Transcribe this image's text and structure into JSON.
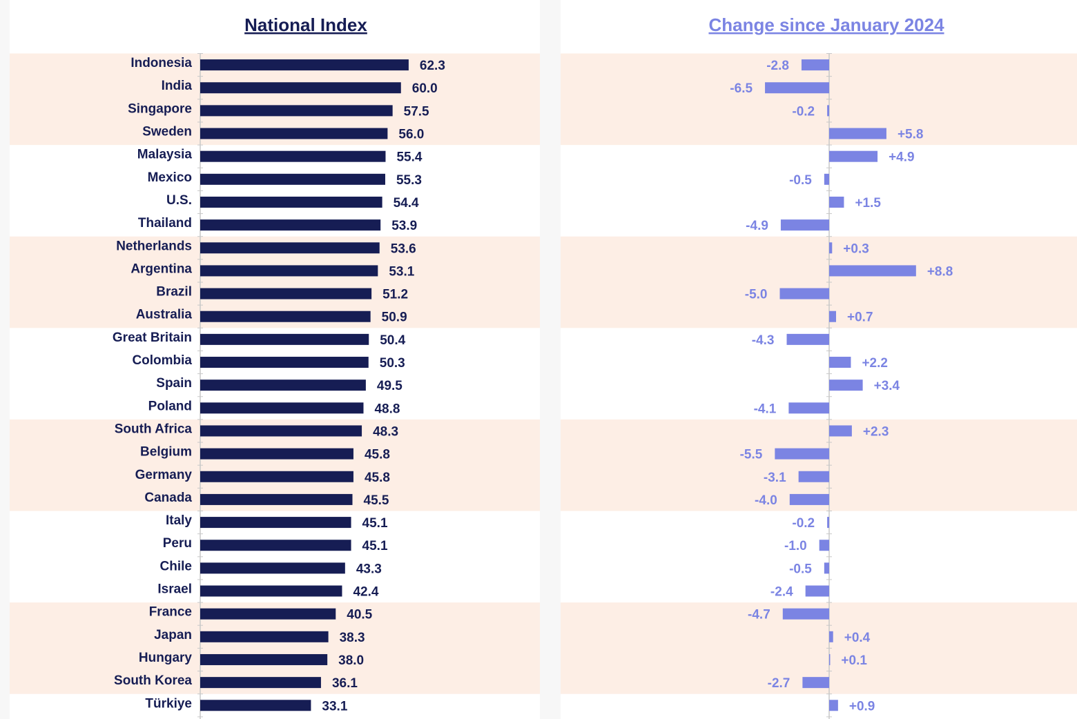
{
  "chart_data": [
    {
      "type": "bar",
      "orientation": "horizontal",
      "title": "National Index",
      "categories": [
        "Indonesia",
        "India",
        "Singapore",
        "Sweden",
        "Malaysia",
        "Mexico",
        "U.S.",
        "Thailand",
        "Netherlands",
        "Argentina",
        "Brazil",
        "Australia",
        "Great Britain",
        "Colombia",
        "Spain",
        "Poland",
        "South Africa",
        "Belgium",
        "Germany",
        "Canada",
        "Italy",
        "Peru",
        "Chile",
        "Israel",
        "France",
        "Japan",
        "Hungary",
        "South Korea",
        "Türkiye"
      ],
      "values": [
        62.3,
        60.0,
        57.5,
        56.0,
        55.4,
        55.3,
        54.4,
        53.9,
        53.6,
        53.1,
        51.2,
        50.9,
        50.4,
        50.3,
        49.5,
        48.8,
        48.3,
        45.8,
        45.8,
        45.5,
        45.1,
        45.1,
        43.3,
        42.4,
        40.5,
        38.3,
        38.0,
        36.1,
        33.1
      ],
      "value_labels": [
        "62.3",
        "60.0",
        "57.5",
        "56.0",
        "55.4",
        "55.3",
        "54.4",
        "53.9",
        "53.6",
        "53.1",
        "51.2",
        "50.9",
        "50.4",
        "50.3",
        "49.5",
        "48.8",
        "48.3",
        "45.8",
        "45.8",
        "45.5",
        "45.1",
        "45.1",
        "43.3",
        "42.4",
        "40.5",
        "38.3",
        "38.0",
        "36.1",
        "33.1"
      ],
      "color": "#161d54",
      "xlim": [
        0,
        65
      ]
    },
    {
      "type": "bar",
      "orientation": "horizontal",
      "title": "Change since January 2024",
      "values": [
        -2.8,
        -6.5,
        -0.2,
        5.8,
        4.9,
        -0.5,
        1.5,
        -4.9,
        0.3,
        8.8,
        -5.0,
        0.7,
        -4.3,
        2.2,
        3.4,
        -4.1,
        2.3,
        -5.5,
        -3.1,
        -4.0,
        -0.2,
        -1.0,
        -0.5,
        -2.4,
        -4.7,
        0.4,
        0.1,
        -2.7,
        0.9
      ],
      "value_labels": [
        "-2.8",
        "-6.5",
        "-0.2",
        "+5.8",
        "+4.9",
        "-0.5",
        "+1.5",
        "-4.9",
        "+0.3",
        "+8.8",
        "-5.0",
        "+0.7",
        "-4.3",
        "+2.2",
        "+3.4",
        "-4.1",
        "+2.3",
        "-5.5",
        "-3.1",
        "-4.0",
        "-0.2",
        "-1.0",
        "-0.5",
        "-2.4",
        "-4.7",
        "+0.4",
        "+0.1",
        "-2.7",
        "+0.9"
      ],
      "color": "#7b84e3",
      "xlim": [
        -10,
        10
      ]
    }
  ]
}
